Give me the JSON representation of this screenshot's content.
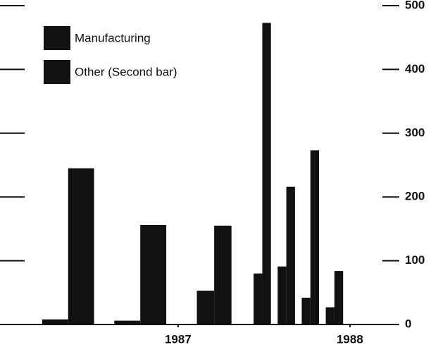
{
  "chart_data": {
    "type": "bar",
    "x": [
      1986.36,
      1986.78,
      1987.21,
      1987.49,
      1987.63,
      1987.77,
      1987.91
    ],
    "series": [
      {
        "name": "Manufacturing",
        "color": "#111111",
        "values": [
          8,
          6,
          53,
          80,
          91,
          42,
          27
        ]
      },
      {
        "name": "Other (Second bar)",
        "color": "#111111",
        "values": [
          245,
          156,
          155,
          473,
          216,
          273,
          84
        ]
      }
    ],
    "xlim": [
      1986.107,
      1988.189
    ],
    "xticks": [
      1987,
      1988
    ],
    "ylim": [
      0,
      500
    ],
    "yticks": [
      0,
      100,
      200,
      300,
      400,
      500
    ],
    "y_axis_side": "right",
    "legend": "top-left"
  }
}
